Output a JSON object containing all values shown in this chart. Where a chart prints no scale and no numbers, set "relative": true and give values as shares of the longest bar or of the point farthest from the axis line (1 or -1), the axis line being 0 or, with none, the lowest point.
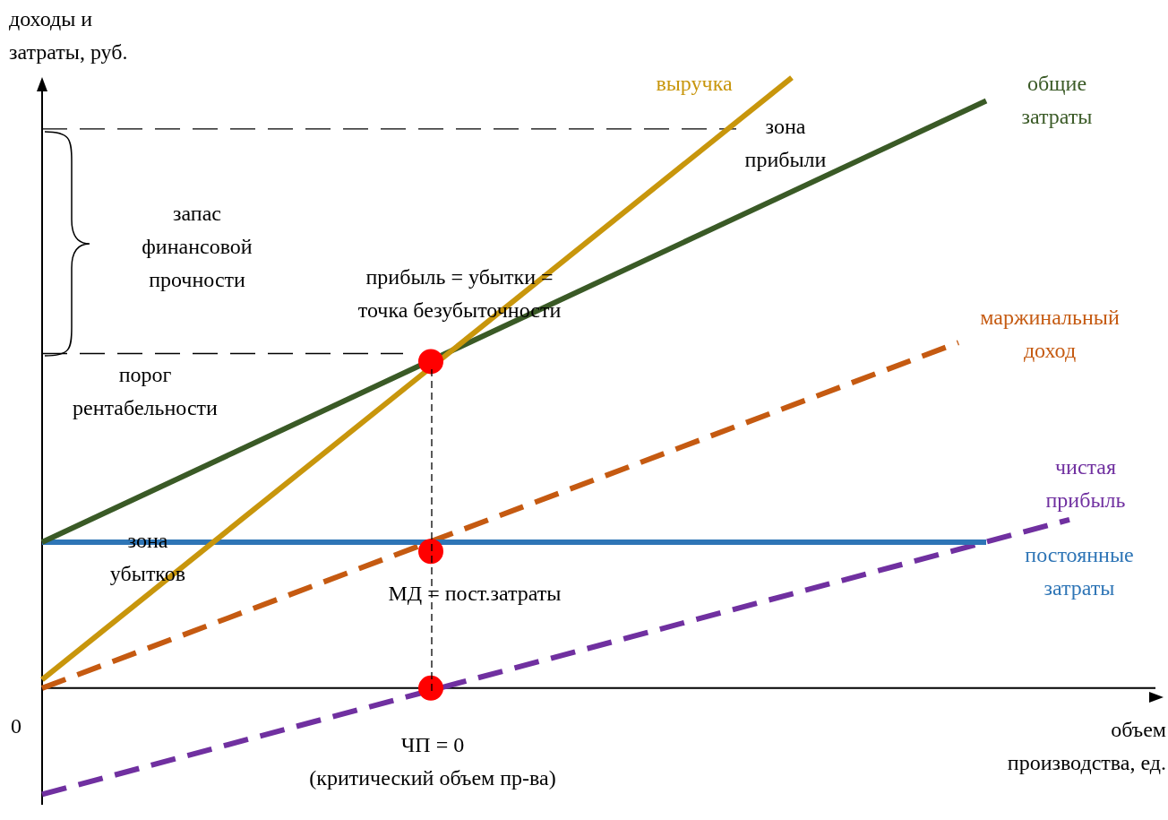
{
  "chart_data": {
    "type": "line",
    "relative": true,
    "ylabel": "доходы и затраты, руб.",
    "xlabel": "объем производства, ед.",
    "legend": false,
    "categories": [
      null,
      null,
      null,
      null,
      null,
      null,
      null,
      null,
      null,
      null,
      null,
      null,
      null,
      null,
      null,
      null,
      null,
      null,
      null,
      null,
      null,
      null,
      null,
      null,
      null,
      null,
      null,
      null,
      null,
      null,
      null,
      null,
      null,
      null,
      null,
      null,
      null,
      null,
      null,
      null,
      null
    ],
    "series": [
      {
        "name": "выручка",
        "color": "#c8960c",
        "line_style": "solid",
        "marker": "none",
        "values": [
          0.014,
          null,
          null,
          null,
          null,
          null,
          null,
          null,
          null,
          null,
          null,
          null,
          null,
          null,
          null,
          null,
          null,
          null,
          null,
          null,
          null,
          null,
          null,
          null,
          null,
          null,
          null,
          1,
          null,
          null,
          null,
          null,
          null,
          null,
          null,
          null,
          null,
          null,
          null,
          null,
          null
        ]
      },
      {
        "name": "общие затраты",
        "color": "#3a5a26",
        "line_style": "solid",
        "marker": "none",
        "values": [
          0.239,
          null,
          null,
          null,
          null,
          null,
          null,
          null,
          null,
          null,
          null,
          null,
          null,
          null,
          null,
          null,
          null,
          null,
          null,
          null,
          null,
          null,
          null,
          null,
          null,
          null,
          null,
          null,
          null,
          null,
          null,
          null,
          null,
          null,
          0.962,
          null,
          null,
          null,
          null,
          null,
          null
        ]
      },
      {
        "name": "постоянные затраты",
        "color": "#2e75b6",
        "line_style": "solid",
        "marker": "none",
        "values": [
          0.239,
          null,
          null,
          null,
          null,
          null,
          null,
          null,
          null,
          null,
          null,
          null,
          null,
          null,
          null,
          null,
          null,
          null,
          null,
          null,
          null,
          null,
          null,
          null,
          null,
          null,
          null,
          null,
          null,
          null,
          null,
          null,
          null,
          null,
          0.239,
          null,
          null,
          null,
          null,
          null,
          null
        ]
      },
      {
        "name": "маржинальный доход",
        "color": "#c55a11",
        "line_style": "dashed",
        "marker": "none",
        "values": [
          0,
          null,
          null,
          null,
          null,
          null,
          null,
          null,
          null,
          null,
          null,
          null,
          null,
          null,
          null,
          null,
          null,
          null,
          null,
          null,
          null,
          null,
          null,
          null,
          null,
          null,
          null,
          null,
          null,
          null,
          null,
          null,
          null,
          0.566,
          null,
          null,
          null,
          null,
          null,
          null,
          null
        ]
      },
      {
        "name": "чистая прибыль",
        "color": "#7030a0",
        "line_style": "dashed",
        "marker": "none",
        "values": [
          -0.174,
          null,
          null,
          null,
          null,
          null,
          null,
          null,
          null,
          null,
          null,
          null,
          null,
          null,
          null,
          null,
          null,
          null,
          null,
          null,
          null,
          null,
          null,
          null,
          null,
          null,
          null,
          null,
          null,
          null,
          null,
          null,
          null,
          null,
          null,
          null,
          null,
          0.276,
          null,
          null,
          null
        ]
      },
      {
        "color": "#000000",
        "line_style": "dashed",
        "marker": "none",
        "values": [
          0.916,
          null,
          null,
          null,
          null,
          null,
          null,
          null,
          null,
          null,
          null,
          null,
          null,
          null,
          null,
          null,
          null,
          null,
          null,
          null,
          null,
          null,
          null,
          null,
          null,
          0.916,
          null,
          null,
          null,
          null,
          null,
          null,
          null,
          null,
          null,
          null,
          null,
          null,
          null,
          null,
          null
        ]
      },
      {
        "color": "#000000",
        "line_style": "dashed",
        "marker": "none",
        "values": [
          0.548,
          null,
          null,
          null,
          null,
          null,
          null,
          null,
          null,
          null,
          null,
          null,
          null,
          0.548,
          null,
          null,
          null,
          null,
          null,
          null,
          null,
          null,
          null,
          null,
          null,
          null,
          null,
          null,
          null,
          null,
          null,
          null,
          null,
          null,
          null,
          null,
          null,
          null,
          null,
          null,
          null
        ]
      },
      {
        "color": "#ff0000",
        "marker": "circle",
        "values": [
          null,
          null,
          null,
          null,
          null,
          null,
          null,
          null,
          null,
          null,
          null,
          null,
          null,
          null,
          0.535,
          null,
          null,
          null,
          null,
          null,
          null,
          null,
          null,
          null,
          null,
          null,
          null,
          null,
          null,
          null,
          null,
          null,
          null,
          null,
          null,
          null,
          null,
          null,
          null,
          null,
          null
        ]
      },
      {
        "color": "#ff0000",
        "marker": "circle",
        "values": [
          null,
          null,
          null,
          null,
          null,
          null,
          null,
          null,
          null,
          null,
          null,
          null,
          null,
          null,
          0.224,
          null,
          null,
          null,
          null,
          null,
          null,
          null,
          null,
          null,
          null,
          null,
          null,
          null,
          null,
          null,
          null,
          null,
          null,
          null,
          null,
          null,
          null,
          null,
          null,
          null,
          null
        ]
      },
      {
        "color": "#ff0000",
        "marker": "circle",
        "values": [
          null,
          null,
          null,
          null,
          null,
          null,
          null,
          null,
          null,
          null,
          null,
          null,
          null,
          null,
          0,
          null,
          null,
          null,
          null,
          null,
          null,
          null,
          null,
          null,
          null,
          null,
          null,
          null,
          null,
          null,
          null,
          null,
          null,
          null,
          null,
          null,
          null,
          null,
          null,
          null,
          null
        ]
      }
    ],
    "annotations": [
      "зона прибыли",
      "запас финансовой прочности",
      "прибыль = убытки = точка безубыточности",
      "порог рентабельности",
      "зона убытков",
      "МД = пост.затраты",
      "ЧП = 0 (критический объем пр-ва)",
      "0"
    ]
  }
}
